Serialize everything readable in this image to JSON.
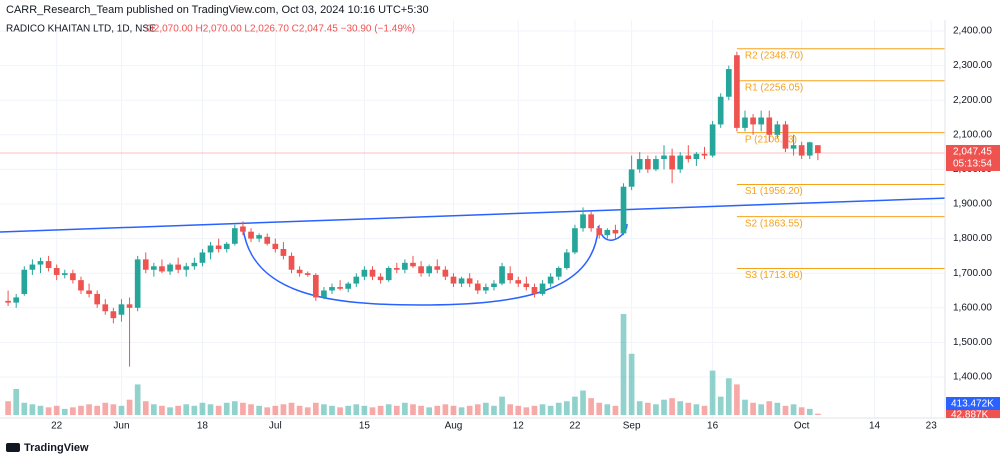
{
  "header": {
    "publisher": "CARR_Research_Team published on TradingView.com, Oct 03, 2024 10:16 UTC+5:30",
    "symbol": "RADICO KHAITAN LTD, 1D, NSE",
    "ohlc": "O2,070.00  H2,070.00  L2,026.70  C2,047.45  −30.90 (−1.49%)",
    "footer": "TradingView"
  },
  "chart_data": {
    "type": "candlestick",
    "up_color": "#26a69a",
    "down_color": "#ef5350",
    "xlim": [
      -1,
      115.7
    ],
    "ylim": [
      1281.5,
      2431.8
    ],
    "xticks": [
      {
        "value": 6,
        "label": "22"
      },
      {
        "value": 14,
        "label": "Jun"
      },
      {
        "value": 24,
        "label": "18"
      },
      {
        "value": 33,
        "label": "Jul"
      },
      {
        "value": 44,
        "label": "15"
      },
      {
        "value": 55,
        "label": "Aug"
      },
      {
        "value": 63,
        "label": "12"
      },
      {
        "value": 70,
        "label": "22"
      },
      {
        "value": 77,
        "label": "Sep"
      },
      {
        "value": 87,
        "label": "16"
      },
      {
        "value": 98,
        "label": "Oct"
      },
      {
        "value": 107,
        "label": "14"
      },
      {
        "value": 114,
        "label": "23"
      }
    ],
    "yticks": [
      {
        "value": 1400,
        "label": "1,400.00"
      },
      {
        "value": 1500,
        "label": "1,500.00"
      },
      {
        "value": 1600,
        "label": "1,600.00"
      },
      {
        "value": 1700,
        "label": "1,700.00"
      },
      {
        "value": 1800,
        "label": "1,800.00"
      },
      {
        "value": 1900,
        "label": "1,900.00"
      },
      {
        "value": 2000,
        "label": "2,000.00"
      },
      {
        "value": 2100,
        "label": "2,100.00"
      },
      {
        "value": 2200,
        "label": "2,200.00"
      },
      {
        "value": 2300,
        "label": "2,300.00"
      },
      {
        "value": 2400,
        "label": "2,400.00"
      }
    ],
    "candles": [
      [
        1620,
        1650,
        1605,
        1615
      ],
      [
        1615,
        1640,
        1600,
        1630
      ],
      [
        1640,
        1720,
        1635,
        1710
      ],
      [
        1710,
        1740,
        1695,
        1725
      ],
      [
        1725,
        1745,
        1700,
        1735
      ],
      [
        1735,
        1750,
        1705,
        1715
      ],
      [
        1715,
        1725,
        1680,
        1695
      ],
      [
        1695,
        1710,
        1685,
        1700
      ],
      [
        1700,
        1710,
        1670,
        1680
      ],
      [
        1680,
        1690,
        1640,
        1650
      ],
      [
        1650,
        1670,
        1630,
        1640
      ],
      [
        1640,
        1650,
        1600,
        1610
      ],
      [
        1610,
        1625,
        1580,
        1590
      ],
      [
        1590,
        1600,
        1555,
        1570
      ],
      [
        1580,
        1625,
        1560,
        1610
      ],
      [
        1610,
        1630,
        1430,
        1600
      ],
      [
        1600,
        1750,
        1590,
        1740
      ],
      [
        1740,
        1760,
        1700,
        1710
      ],
      [
        1710,
        1730,
        1690,
        1720
      ],
      [
        1720,
        1740,
        1700,
        1705
      ],
      [
        1705,
        1730,
        1695,
        1725
      ],
      [
        1725,
        1745,
        1700,
        1710
      ],
      [
        1710,
        1730,
        1690,
        1720
      ],
      [
        1720,
        1745,
        1710,
        1730
      ],
      [
        1730,
        1770,
        1720,
        1760
      ],
      [
        1760,
        1790,
        1740,
        1780
      ],
      [
        1780,
        1800,
        1760,
        1770
      ],
      [
        1770,
        1790,
        1760,
        1785
      ],
      [
        1785,
        1840,
        1780,
        1830
      ],
      [
        1835,
        1850,
        1810,
        1820
      ],
      [
        1820,
        1830,
        1790,
        1800
      ],
      [
        1800,
        1815,
        1790,
        1810
      ],
      [
        1805,
        1815,
        1780,
        1785
      ],
      [
        1785,
        1800,
        1760,
        1770
      ],
      [
        1770,
        1790,
        1740,
        1750
      ],
      [
        1750,
        1760,
        1700,
        1710
      ],
      [
        1710,
        1720,
        1690,
        1700
      ],
      [
        1700,
        1705,
        1690,
        1695
      ],
      [
        1695,
        1700,
        1620,
        1630
      ],
      [
        1630,
        1660,
        1625,
        1650
      ],
      [
        1650,
        1670,
        1640,
        1660
      ],
      [
        1660,
        1680,
        1650,
        1655
      ],
      [
        1655,
        1675,
        1645,
        1670
      ],
      [
        1670,
        1700,
        1660,
        1690
      ],
      [
        1690,
        1720,
        1680,
        1710
      ],
      [
        1710,
        1720,
        1680,
        1690
      ],
      [
        1690,
        1700,
        1670,
        1680
      ],
      [
        1680,
        1720,
        1675,
        1715
      ],
      [
        1715,
        1730,
        1700,
        1710
      ],
      [
        1710,
        1740,
        1700,
        1730
      ],
      [
        1730,
        1750,
        1715,
        1720
      ],
      [
        1720,
        1735,
        1690,
        1700
      ],
      [
        1700,
        1725,
        1690,
        1720
      ],
      [
        1720,
        1740,
        1700,
        1710
      ],
      [
        1710,
        1720,
        1680,
        1690
      ],
      [
        1690,
        1700,
        1660,
        1670
      ],
      [
        1670,
        1690,
        1660,
        1685
      ],
      [
        1685,
        1700,
        1660,
        1670
      ],
      [
        1670,
        1680,
        1640,
        1650
      ],
      [
        1650,
        1670,
        1640,
        1660
      ],
      [
        1660,
        1680,
        1650,
        1670
      ],
      [
        1670,
        1730,
        1665,
        1720
      ],
      [
        1700,
        1720,
        1670,
        1680
      ],
      [
        1680,
        1690,
        1660,
        1670
      ],
      [
        1670,
        1690,
        1650,
        1660
      ],
      [
        1660,
        1670,
        1630,
        1640
      ],
      [
        1640,
        1680,
        1635,
        1670
      ],
      [
        1670,
        1700,
        1660,
        1690
      ],
      [
        1690,
        1720,
        1680,
        1715
      ],
      [
        1715,
        1770,
        1710,
        1760
      ],
      [
        1760,
        1840,
        1755,
        1830
      ],
      [
        1830,
        1890,
        1820,
        1870
      ],
      [
        1870,
        1880,
        1820,
        1830
      ],
      [
        1830,
        1840,
        1800,
        1810
      ],
      [
        1810,
        1830,
        1800,
        1825
      ],
      [
        1825,
        1840,
        1800,
        1815
      ],
      [
        1815,
        1960,
        1810,
        1950
      ],
      [
        1950,
        2040,
        1940,
        2000
      ],
      [
        2000,
        2050,
        1990,
        2030
      ],
      [
        2030,
        2040,
        1990,
        2000
      ],
      [
        2000,
        2040,
        1995,
        2030
      ],
      [
        2030,
        2070,
        2000,
        2040
      ],
      [
        2040,
        2060,
        1960,
        2000
      ],
      [
        2000,
        2050,
        1990,
        2040
      ],
      [
        2040,
        2070,
        2020,
        2030
      ],
      [
        2030,
        2050,
        2010,
        2045
      ],
      [
        2045,
        2065,
        2030,
        2040
      ],
      [
        2040,
        2140,
        2035,
        2130
      ],
      [
        2130,
        2220,
        2120,
        2210
      ],
      [
        2210,
        2300,
        2200,
        2290
      ],
      [
        2330,
        2340,
        2110,
        2120
      ],
      [
        2120,
        2170,
        2110,
        2150
      ],
      [
        2150,
        2160,
        2100,
        2130
      ],
      [
        2130,
        2170,
        2110,
        2150
      ],
      [
        2150,
        2170,
        2080,
        2100
      ],
      [
        2100,
        2140,
        2090,
        2130
      ],
      [
        2130,
        2140,
        2050,
        2060
      ],
      [
        2060,
        2100,
        2040,
        2070
      ],
      [
        2070,
        2080,
        2030,
        2040
      ],
      [
        2040,
        2080,
        2030,
        2078.35
      ],
      [
        2070,
        2070,
        2026.7,
        2047.45
      ]
    ],
    "volume_lim": [
      0,
      13000
    ],
    "volumes": [
      450,
      850,
      400,
      350,
      300,
      250,
      300,
      200,
      250,
      300,
      350,
      300,
      400,
      350,
      300,
      500,
      1000,
      450,
      350,
      300,
      250,
      300,
      350,
      300,
      400,
      350,
      300,
      400,
      450,
      400,
      350,
      300,
      250,
      300,
      350,
      400,
      300,
      250,
      400,
      350,
      300,
      250,
      300,
      350,
      300,
      250,
      300,
      350,
      300,
      400,
      350,
      300,
      250,
      300,
      350,
      300,
      250,
      300,
      350,
      400,
      300,
      600,
      350,
      300,
      250,
      300,
      350,
      300,
      400,
      450,
      600,
      800,
      550,
      400,
      350,
      300,
      3300,
      2000,
      450,
      400,
      350,
      500,
      550,
      450,
      400,
      350,
      300,
      1450,
      600,
      1200,
      1000,
      500,
      400,
      350,
      450,
      400,
      300,
      350,
      250,
      200,
      42.887
    ],
    "last_price": {
      "value": 2047.45,
      "label": "2,047.45"
    },
    "countdown": "05:13:54",
    "volume_ma_label": {
      "value": 413.472,
      "label": "413.472K"
    },
    "last_volume_label": {
      "value": 42.887,
      "label": "42.887K"
    },
    "pivots": [
      {
        "value": 2348.7,
        "label": "R2 (2348.70)"
      },
      {
        "value": 2256.05,
        "label": "R1 (2256.05)"
      },
      {
        "value": 2106.13,
        "label": "P (2106.13)"
      },
      {
        "value": 1956.2,
        "label": "S1 (1956.20)"
      },
      {
        "value": 1863.55,
        "label": "S2 (1863.55)"
      },
      {
        "value": 1713.6,
        "label": "S3 (1713.60)"
      }
    ],
    "pivot_start": 90,
    "trendline": {
      "x": [
        -1,
        115.7
      ],
      "y": [
        1819,
        1917
      ]
    }
  }
}
